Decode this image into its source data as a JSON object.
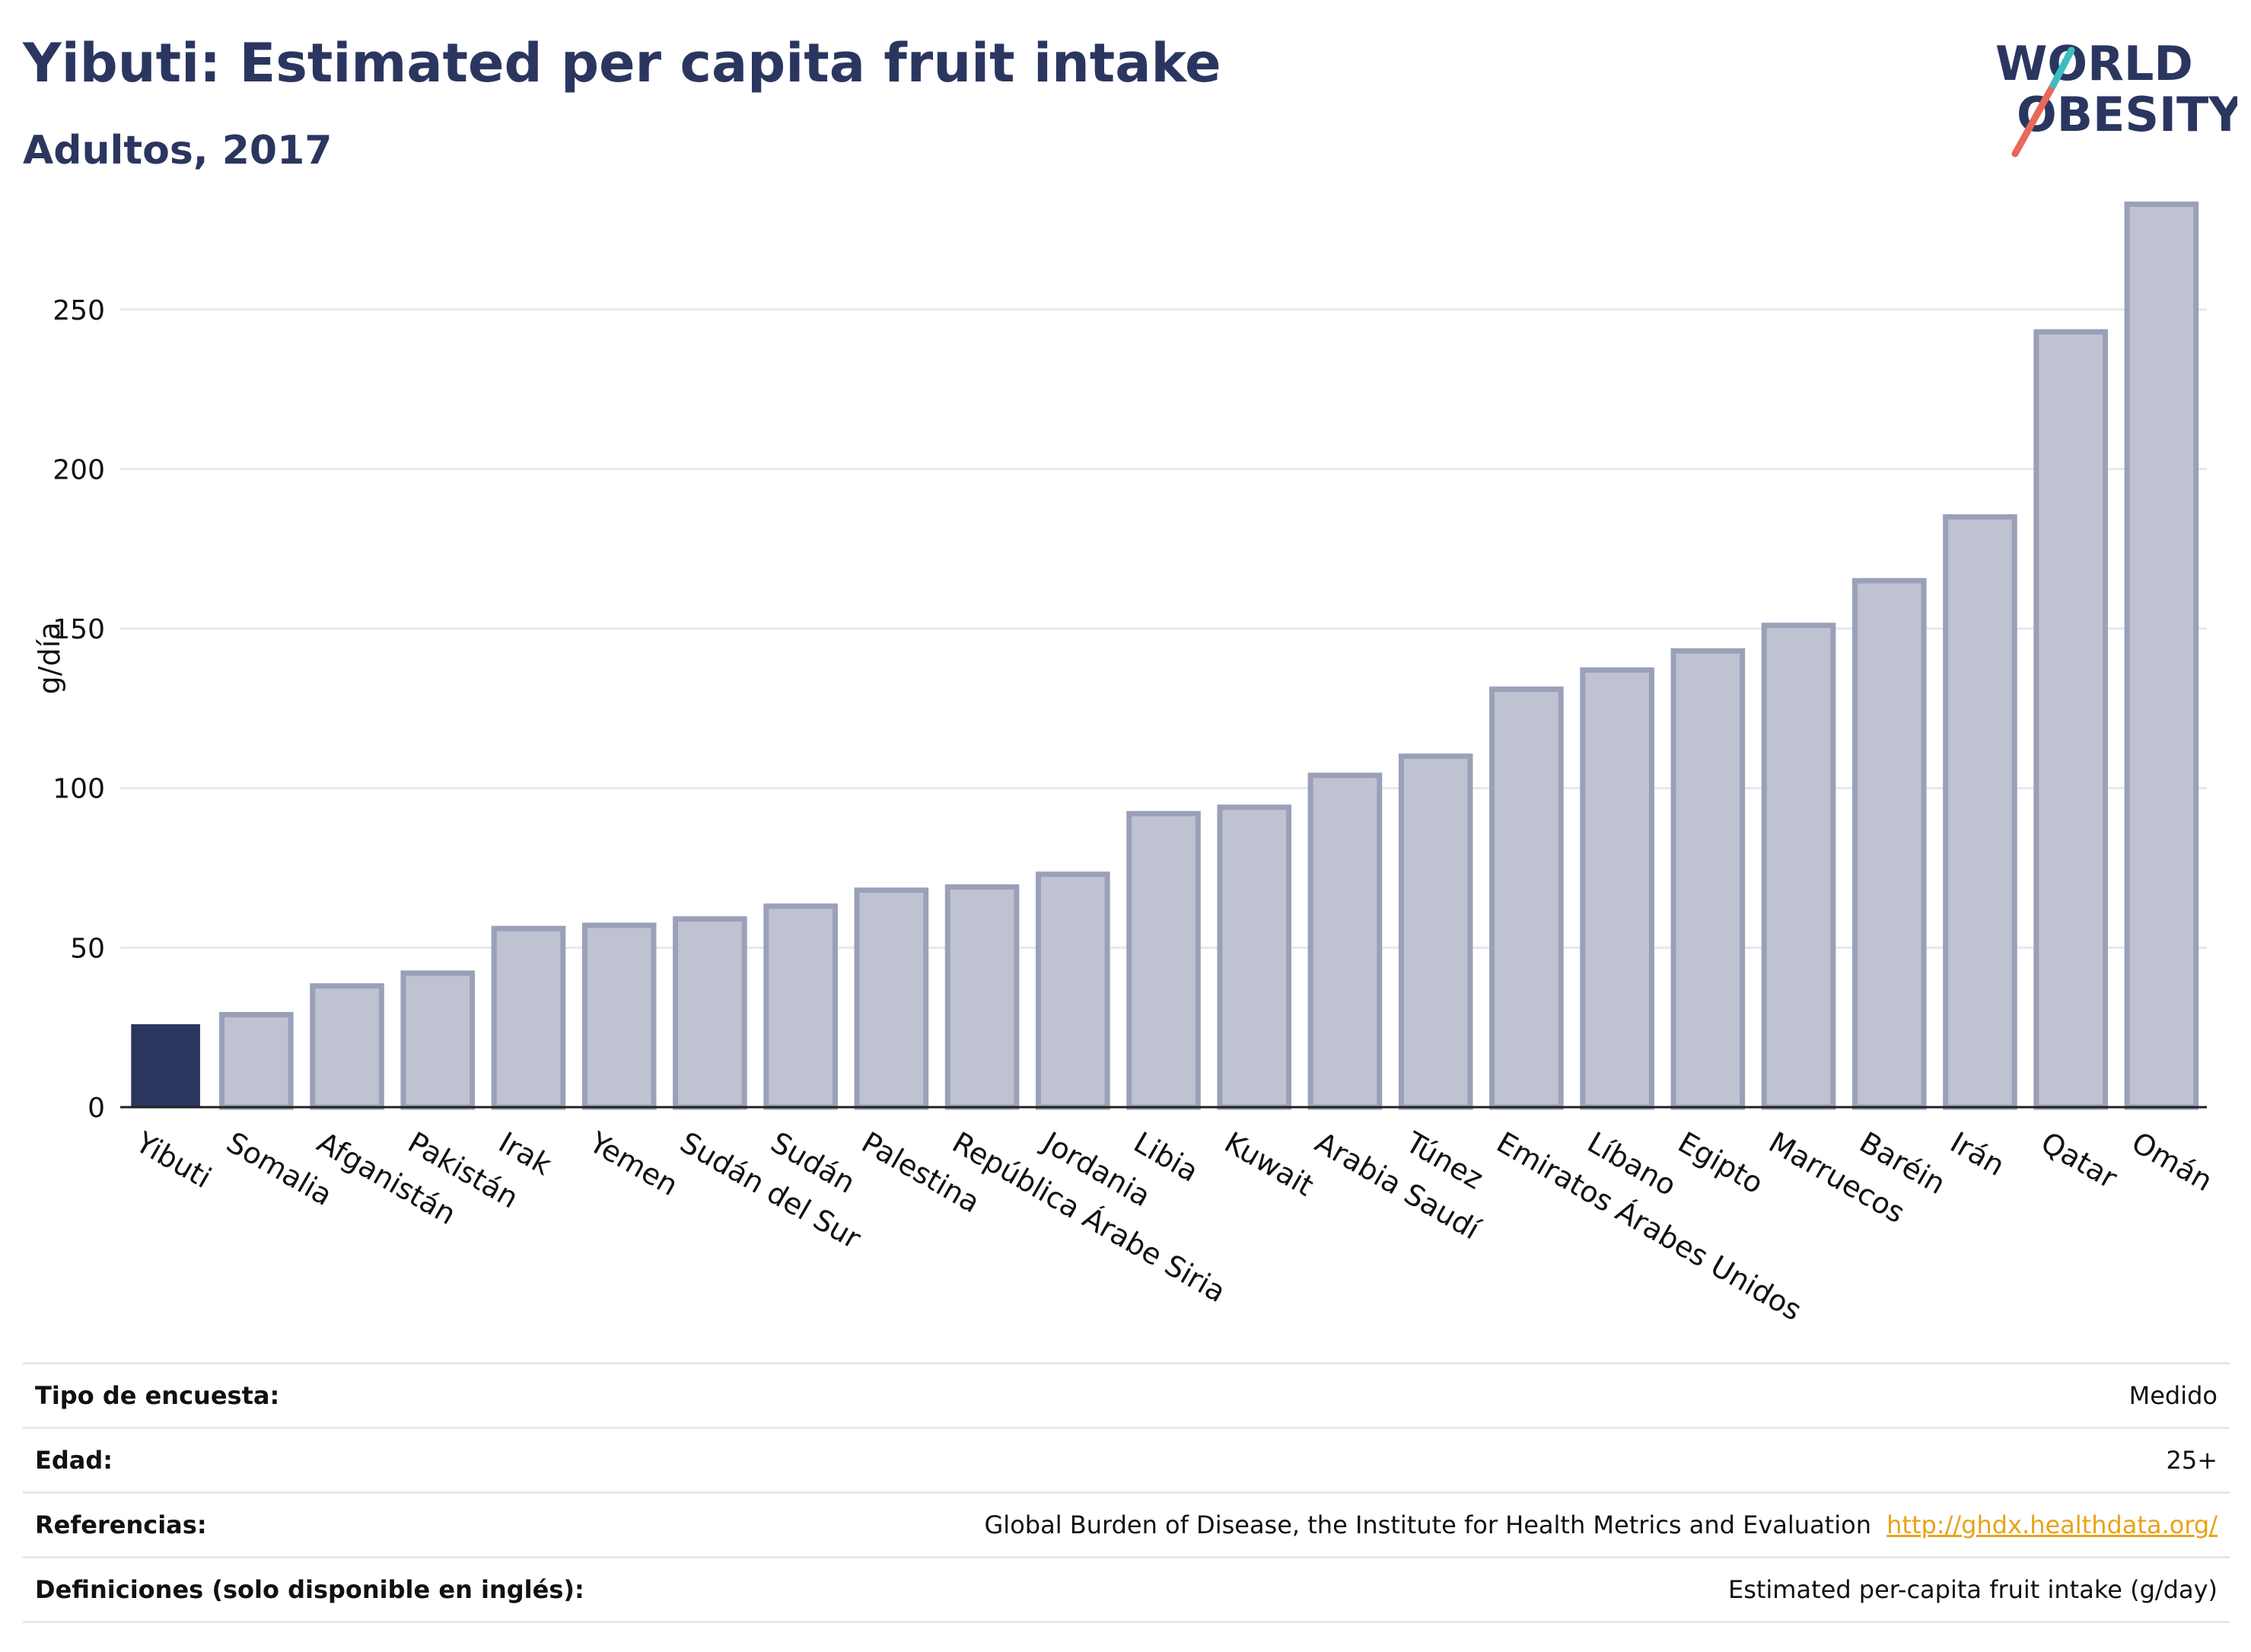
{
  "header": {
    "title": "Yibuti: Estimated per capita fruit intake",
    "subtitle": "Adultos, 2017"
  },
  "logo": {
    "text_line1": "WORLD",
    "text_line2": "OBESITY",
    "text_color": "#2b3660",
    "slash_colors": [
      "#e8695a",
      "#3cbcc3"
    ]
  },
  "colors": {
    "highlight_bar": "#2b3660",
    "other_bar_fill": "#bfc3d1",
    "other_bar_stroke": "#9aa0b8",
    "grid": "#e6e8ee",
    "axis": "#222222",
    "link": "#e8a317"
  },
  "chart_data": {
    "type": "bar",
    "ylabel": "g/día",
    "ylim": [
      0,
      285
    ],
    "yticks": [
      0,
      50,
      100,
      150,
      200,
      250
    ],
    "grid": true,
    "highlight": "Yibuti",
    "categories": [
      "Yibuti",
      "Somalia",
      "Afganistán",
      "Pakistán",
      "Irak",
      "Yemen",
      "Sudán del Sur",
      "Sudán",
      "Palestina",
      "República Árabe Siria",
      "Jordania",
      "Libia",
      "Kuwait",
      "Arabia Saudí",
      "Túnez",
      "Emiratos Árabes Unidos",
      "Líbano",
      "Egipto",
      "Marruecos",
      "Baréin",
      "Irán",
      "Qatar",
      "Omán"
    ],
    "values": [
      26,
      29,
      38,
      42,
      56,
      57,
      59,
      63,
      68,
      69,
      73,
      92,
      94,
      104,
      110,
      131,
      137,
      143,
      151,
      165,
      185,
      243,
      283
    ]
  },
  "meta": [
    {
      "label": "Tipo de encuesta:",
      "value": "Medido"
    },
    {
      "label": "Edad:",
      "value": "25+"
    },
    {
      "label": "Referencias:",
      "value": "Global Burden of Disease, the Institute for Health Metrics and Evaluation",
      "link": "http://ghdx.healthdata.org/"
    },
    {
      "label": "Definiciones (solo disponible en inglés):",
      "value": "Estimated per-capita fruit intake (g/day)"
    }
  ]
}
